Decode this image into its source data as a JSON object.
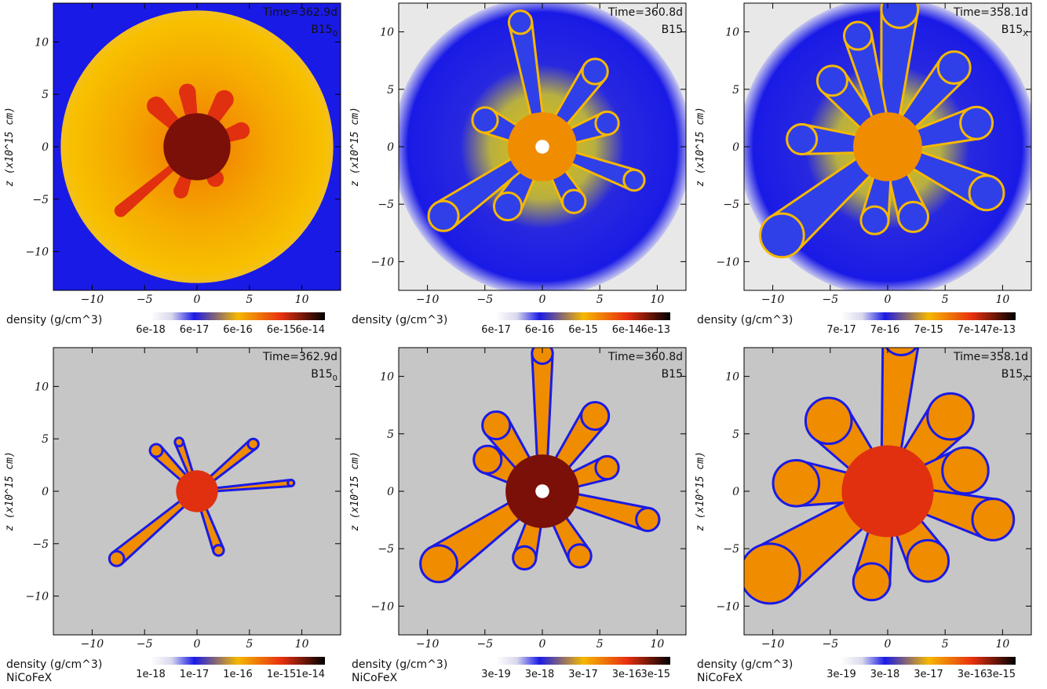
{
  "figure": {
    "ylabel": "z  (x10^15  cm)",
    "colorbar_title": "density (g/cm^3)",
    "colorbar_subtitle": "NiCoFeX"
  },
  "colors": {
    "gray_bg": "#c6c6c6",
    "blue": "#1a1ae6",
    "light_gray": "#d9d9d9",
    "gold": "#f5b800",
    "orange": "#f08c00",
    "red": "#e03010",
    "dark_red": "#7a1008",
    "black": "#000000",
    "white": "#ffffff"
  },
  "chart_data": [
    {
      "type": "heatmap",
      "panel_id": "a",
      "time": "Time=362.9d",
      "model": "B15",
      "model_sub": "0",
      "xlim": [
        -13.7,
        13.7
      ],
      "ylim": [
        -13.7,
        13.7
      ],
      "xticks": [
        -10,
        -5,
        0,
        5,
        10
      ],
      "yticks": [
        -10,
        -5,
        0,
        5,
        10
      ],
      "colorbar": {
        "ticks": [
          "6e-18",
          "6e-17",
          "6e-16",
          "6e-15",
          "6e-14"
        ],
        "sub": false
      },
      "variant": "density-full"
    },
    {
      "type": "heatmap",
      "panel_id": "b",
      "time": "Time=360.8d",
      "model": "B15",
      "model_sub": "",
      "xlim": [
        -12.5,
        12.5
      ],
      "ylim": [
        -12.5,
        12.5
      ],
      "xticks": [
        -10,
        -5,
        0,
        5,
        10
      ],
      "yticks": [
        -10,
        -5,
        0,
        5,
        10
      ],
      "colorbar": {
        "ticks": [
          "6e-17",
          "6e-16",
          "6e-15",
          "6e-14",
          "6e-13"
        ],
        "sub": false
      },
      "variant": "density-plumes",
      "center_dot": true
    },
    {
      "type": "heatmap",
      "panel_id": "c",
      "time": "Time=358.1d",
      "model": "B15",
      "model_sub": "X",
      "xlim": [
        -12.5,
        12.5
      ],
      "ylim": [
        -12.5,
        12.5
      ],
      "xticks": [
        -10,
        -5,
        0,
        5,
        10
      ],
      "yticks": [
        -10,
        -5,
        0,
        5,
        10
      ],
      "colorbar": {
        "ticks": [
          "7e-17",
          "7e-16",
          "7e-15",
          "7e-14",
          "7e-13"
        ],
        "sub": false
      },
      "variant": "density-plumes",
      "center_dot": false
    },
    {
      "type": "heatmap",
      "panel_id": "d",
      "time": "Time=362.9d",
      "model": "B15",
      "model_sub": "0",
      "xlim": [
        -13.7,
        13.7
      ],
      "ylim": [
        -13.7,
        13.7
      ],
      "xticks": [
        -10,
        -5,
        0,
        5,
        10
      ],
      "yticks": [
        -10,
        -5,
        0,
        5,
        10
      ],
      "colorbar": {
        "ticks": [
          "1e-18",
          "1e-17",
          "1e-16",
          "1e-15",
          "1e-14"
        ],
        "sub": true
      },
      "variant": "ni-small"
    },
    {
      "type": "heatmap",
      "panel_id": "e",
      "time": "Time=360.8d",
      "model": "B15",
      "model_sub": "",
      "xlim": [
        -12.5,
        12.5
      ],
      "ylim": [
        -12.5,
        12.5
      ],
      "xticks": [
        -10,
        -5,
        0,
        5,
        10
      ],
      "yticks": [
        -10,
        -5,
        0,
        5,
        10
      ],
      "colorbar": {
        "ticks": [
          "3e-19",
          "3e-18",
          "3e-17",
          "3e-16",
          "3e-15"
        ],
        "sub": true
      },
      "variant": "ni-medium",
      "center_dot": true
    },
    {
      "type": "heatmap",
      "panel_id": "f",
      "time": "Time=358.1d",
      "model": "B15",
      "model_sub": "X",
      "xlim": [
        -12.5,
        12.5
      ],
      "ylim": [
        -12.5,
        12.5
      ],
      "xticks": [
        -10,
        -5,
        0,
        5,
        10
      ],
      "yticks": [
        -10,
        -5,
        0,
        5,
        10
      ],
      "colorbar": {
        "ticks": [
          "3e-19",
          "3e-18",
          "3e-17",
          "3e-16",
          "3e-15"
        ],
        "sub": true
      },
      "variant": "ni-large"
    }
  ]
}
